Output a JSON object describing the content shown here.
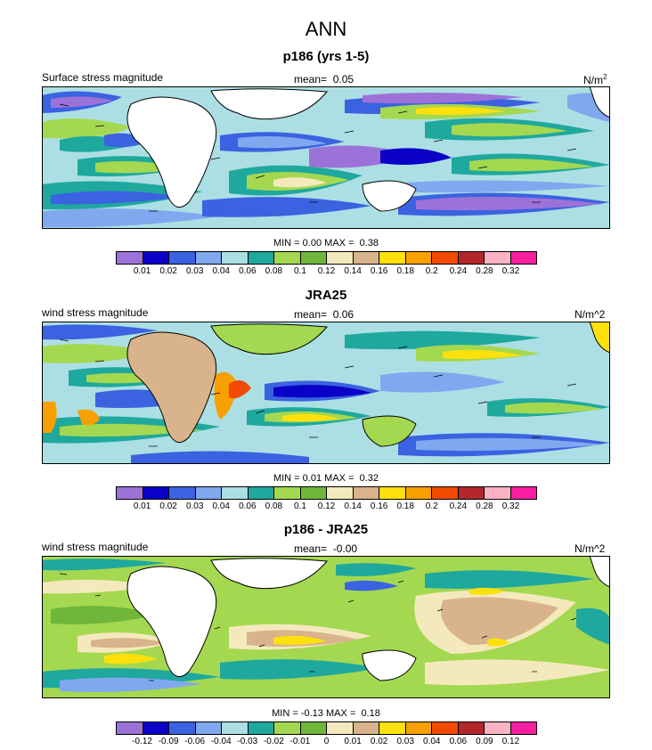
{
  "title": "ANN",
  "chart_data": [
    {
      "type": "heatmap",
      "title": "p186 (yrs 1-5)",
      "left_label": "Surface stress magnitude",
      "mean_label": "mean=",
      "mean_value": "0.05",
      "units": "N/m",
      "units_sup": "2",
      "min_label": "MIN =",
      "min_value": "0.00",
      "max_label": "MAX =",
      "max_value": "0.38",
      "levels": [
        "0.01",
        "0.02",
        "0.03",
        "0.04",
        "0.06",
        "0.08",
        "0.1",
        "0.12",
        "0.14",
        "0.16",
        "0.18",
        "0.2",
        "0.24",
        "0.28",
        "0.32"
      ],
      "colors": [
        "#9d72d8",
        "#0a00c8",
        "#3b62e0",
        "#80a8ef",
        "#acdfe3",
        "#1fa89e",
        "#a4d850",
        "#6fb63a",
        "#f4e9bd",
        "#d9b38b",
        "#fde00c",
        "#f8a000",
        "#f24a00",
        "#b3262a",
        "#fbb3c4",
        "#f71ea0"
      ]
    },
    {
      "type": "heatmap",
      "title": "JRA25",
      "left_label": "wind stress magnitude",
      "mean_label": "mean=",
      "mean_value": "0.06",
      "units": "N/m^2",
      "min_label": "MIN =",
      "min_value": "0.01",
      "max_label": "MAX =",
      "max_value": "0.32",
      "levels": [
        "0.01",
        "0.02",
        "0.03",
        "0.04",
        "0.06",
        "0.08",
        "0.1",
        "0.12",
        "0.14",
        "0.16",
        "0.18",
        "0.2",
        "0.24",
        "0.28",
        "0.32"
      ],
      "colors": [
        "#9d72d8",
        "#0a00c8",
        "#3b62e0",
        "#80a8ef",
        "#acdfe3",
        "#1fa89e",
        "#a4d850",
        "#6fb63a",
        "#f4e9bd",
        "#d9b38b",
        "#fde00c",
        "#f8a000",
        "#f24a00",
        "#b3262a",
        "#fbb3c4",
        "#f71ea0"
      ]
    },
    {
      "type": "heatmap",
      "title": "p186 - JRA25",
      "left_label": "wind stress magnitude",
      "mean_label": "mean=",
      "mean_value": "-0.00",
      "units": "N/m^2",
      "min_label": "MIN =",
      "min_value": "-0.13",
      "max_label": "MAX =",
      "max_value": "0.18",
      "levels": [
        "-0.12",
        "-0.09",
        "-0.06",
        "-0.04",
        "-0.03",
        "-0.02",
        "-0.01",
        "0",
        "0.01",
        "0.02",
        "0.03",
        "0.04",
        "0.06",
        "0.09",
        "0.12"
      ],
      "colors": [
        "#9d72d8",
        "#0a00c8",
        "#3b62e0",
        "#80a8ef",
        "#acdfe3",
        "#1fa89e",
        "#a4d850",
        "#6fb63a",
        "#f4e9bd",
        "#d9b38b",
        "#fde00c",
        "#f8a000",
        "#f24a00",
        "#b3262a",
        "#fbb3c4",
        "#f71ea0"
      ]
    }
  ]
}
